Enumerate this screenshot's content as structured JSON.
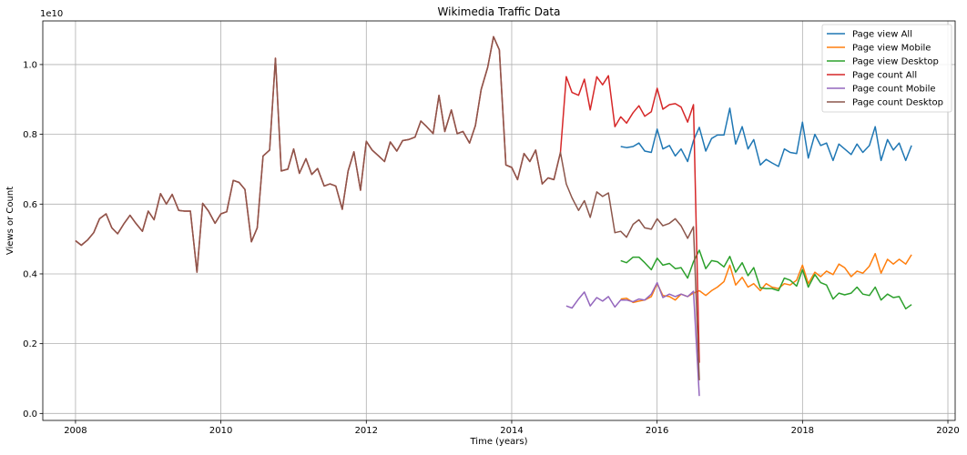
{
  "chart_data": {
    "type": "line",
    "title": "Wikimedia Traffic Data",
    "xlabel": "Time (years)",
    "ylabel": "Views or Count",
    "y_offset_label": "1e10",
    "y_multiplier": 10000000000.0,
    "xlim": [
      2007.55,
      2020.1
    ],
    "ylim": [
      -200000000.0,
      11250000000.0
    ],
    "x_ticks": [
      2008,
      2010,
      2012,
      2014,
      2016,
      2018,
      2020
    ],
    "x_tick_labels": [
      "2008",
      "2010",
      "2012",
      "2014",
      "2016",
      "2018",
      "2020"
    ],
    "y_ticks": [
      0,
      2000000000.0,
      4000000000.0,
      6000000000.0,
      8000000000.0,
      10000000000.0
    ],
    "y_tick_labels": [
      "0.0",
      "0.2",
      "0.4",
      "0.6",
      "0.8",
      "1.0"
    ],
    "grid": true,
    "legend": "top-right",
    "series": [
      {
        "name": "Page view All",
        "color": "#1f77b4",
        "x": [
          2015.5,
          2015.58,
          2015.67,
          2015.75,
          2015.83,
          2015.92,
          2016.0,
          2016.08,
          2016.17,
          2016.25,
          2016.33,
          2016.42,
          2016.5,
          2016.58,
          2016.67,
          2016.75,
          2016.83,
          2016.92,
          2017.0,
          2017.08,
          2017.17,
          2017.25,
          2017.33,
          2017.42,
          2017.5,
          2017.58,
          2017.67,
          2017.75,
          2017.83,
          2017.92,
          2018.0,
          2018.08,
          2018.17,
          2018.25,
          2018.33,
          2018.42,
          2018.5,
          2018.58,
          2018.67,
          2018.75,
          2018.83,
          2018.92,
          2019.0,
          2019.08,
          2019.17,
          2019.25,
          2019.33,
          2019.42,
          2019.5
        ],
        "y": [
          7650000000.0,
          7620000000.0,
          7650000000.0,
          7750000000.0,
          7520000000.0,
          7480000000.0,
          8150000000.0,
          7580000000.0,
          7680000000.0,
          7380000000.0,
          7580000000.0,
          7220000000.0,
          7820000000.0,
          8200000000.0,
          7520000000.0,
          7880000000.0,
          7980000000.0,
          7980000000.0,
          8750000000.0,
          7720000000.0,
          8220000000.0,
          7580000000.0,
          7850000000.0,
          7120000000.0,
          7280000000.0,
          7180000000.0,
          7080000000.0,
          7580000000.0,
          7480000000.0,
          7450000000.0,
          8350000000.0,
          7320000000.0,
          8000000000.0,
          7680000000.0,
          7750000000.0,
          7250000000.0,
          7720000000.0,
          7580000000.0,
          7420000000.0,
          7720000000.0,
          7480000000.0,
          7680000000.0,
          8220000000.0,
          7250000000.0,
          7850000000.0,
          7550000000.0,
          7750000000.0,
          7250000000.0,
          7680000000.0
        ]
      },
      {
        "name": "Page view Mobile",
        "color": "#ff7f0e",
        "x": [
          2015.5,
          2015.58,
          2015.67,
          2015.75,
          2015.83,
          2015.92,
          2016.0,
          2016.08,
          2016.17,
          2016.25,
          2016.33,
          2016.42,
          2016.5,
          2016.58,
          2016.67,
          2016.75,
          2016.83,
          2016.92,
          2017.0,
          2017.08,
          2017.17,
          2017.25,
          2017.33,
          2017.42,
          2017.5,
          2017.58,
          2017.67,
          2017.75,
          2017.83,
          2017.92,
          2018.0,
          2018.08,
          2018.17,
          2018.25,
          2018.33,
          2018.42,
          2018.5,
          2018.58,
          2018.67,
          2018.75,
          2018.83,
          2018.92,
          2019.0,
          2019.08,
          2019.17,
          2019.25,
          2019.33,
          2019.42,
          2019.5
        ],
        "y": [
          3280000000.0,
          3300000000.0,
          3180000000.0,
          3220000000.0,
          3250000000.0,
          3350000000.0,
          3720000000.0,
          3380000000.0,
          3350000000.0,
          3250000000.0,
          3420000000.0,
          3350000000.0,
          3450000000.0,
          3520000000.0,
          3380000000.0,
          3520000000.0,
          3620000000.0,
          3780000000.0,
          4250000000.0,
          3680000000.0,
          3900000000.0,
          3620000000.0,
          3720000000.0,
          3520000000.0,
          3720000000.0,
          3620000000.0,
          3580000000.0,
          3720000000.0,
          3680000000.0,
          3820000000.0,
          4250000000.0,
          3720000000.0,
          4050000000.0,
          3920000000.0,
          4080000000.0,
          3980000000.0,
          4280000000.0,
          4180000000.0,
          3920000000.0,
          4080000000.0,
          4020000000.0,
          4220000000.0,
          4580000000.0,
          4020000000.0,
          4420000000.0,
          4280000000.0,
          4420000000.0,
          4280000000.0,
          4550000000.0
        ]
      },
      {
        "name": "Page view Desktop",
        "color": "#2ca02c",
        "x": [
          2015.5,
          2015.58,
          2015.67,
          2015.75,
          2015.83,
          2015.92,
          2016.0,
          2016.08,
          2016.17,
          2016.25,
          2016.33,
          2016.42,
          2016.5,
          2016.58,
          2016.67,
          2016.75,
          2016.83,
          2016.92,
          2017.0,
          2017.08,
          2017.17,
          2017.25,
          2017.33,
          2017.42,
          2017.5,
          2017.58,
          2017.67,
          2017.75,
          2017.83,
          2017.92,
          2018.0,
          2018.08,
          2018.17,
          2018.25,
          2018.33,
          2018.42,
          2018.5,
          2018.58,
          2018.67,
          2018.75,
          2018.83,
          2018.92,
          2019.0,
          2019.08,
          2019.17,
          2019.25,
          2019.33,
          2019.42,
          2019.5
        ],
        "y": [
          4380000000.0,
          4320000000.0,
          4480000000.0,
          4480000000.0,
          4320000000.0,
          4120000000.0,
          4450000000.0,
          4250000000.0,
          4300000000.0,
          4150000000.0,
          4180000000.0,
          3880000000.0,
          4350000000.0,
          4680000000.0,
          4150000000.0,
          4380000000.0,
          4350000000.0,
          4200000000.0,
          4500000000.0,
          4050000000.0,
          4320000000.0,
          3950000000.0,
          4180000000.0,
          3600000000.0,
          3580000000.0,
          3580000000.0,
          3520000000.0,
          3880000000.0,
          3820000000.0,
          3650000000.0,
          4120000000.0,
          3620000000.0,
          3980000000.0,
          3750000000.0,
          3680000000.0,
          3280000000.0,
          3450000000.0,
          3400000000.0,
          3450000000.0,
          3620000000.0,
          3420000000.0,
          3380000000.0,
          3620000000.0,
          3250000000.0,
          3420000000.0,
          3320000000.0,
          3350000000.0,
          3000000000.0,
          3120000000.0
        ]
      },
      {
        "name": "Page count All",
        "color": "#d62728",
        "x": [
          2008.0,
          2008.08,
          2008.17,
          2008.25,
          2008.33,
          2008.42,
          2008.5,
          2008.58,
          2008.67,
          2008.75,
          2008.83,
          2008.92,
          2009.0,
          2009.08,
          2009.17,
          2009.25,
          2009.33,
          2009.42,
          2009.5,
          2009.58,
          2009.67,
          2009.75,
          2009.83,
          2009.92,
          2010.0,
          2010.08,
          2010.17,
          2010.25,
          2010.33,
          2010.42,
          2010.5,
          2010.58,
          2010.67,
          2010.75,
          2010.83,
          2010.92,
          2011.0,
          2011.08,
          2011.17,
          2011.25,
          2011.33,
          2011.42,
          2011.5,
          2011.58,
          2011.67,
          2011.75,
          2011.83,
          2011.92,
          2012.0,
          2012.08,
          2012.17,
          2012.25,
          2012.33,
          2012.42,
          2012.5,
          2012.58,
          2012.67,
          2012.75,
          2012.83,
          2012.92,
          2013.0,
          2013.08,
          2013.17,
          2013.25,
          2013.33,
          2013.42,
          2013.5,
          2013.58,
          2013.67,
          2013.75,
          2013.83,
          2013.92,
          2014.0,
          2014.08,
          2014.17,
          2014.25,
          2014.33,
          2014.42,
          2014.5,
          2014.58,
          2014.67,
          2014.75,
          2014.83,
          2014.92,
          2015.0,
          2015.08,
          2015.17,
          2015.25,
          2015.33,
          2015.42,
          2015.5,
          2015.58,
          2015.67,
          2015.75,
          2015.83,
          2015.92,
          2016.0,
          2016.08,
          2016.17,
          2016.25,
          2016.33,
          2016.42,
          2016.5,
          2016.58
        ],
        "y": [
          4950000000.0,
          4820000000.0,
          4980000000.0,
          5180000000.0,
          5580000000.0,
          5720000000.0,
          5320000000.0,
          5150000000.0,
          5450000000.0,
          5680000000.0,
          5450000000.0,
          5220000000.0,
          5800000000.0,
          5550000000.0,
          6300000000.0,
          6000000000.0,
          6280000000.0,
          5820000000.0,
          5800000000.0,
          5800000000.0,
          4050000000.0,
          6020000000.0,
          5800000000.0,
          5450000000.0,
          5720000000.0,
          5780000000.0,
          6680000000.0,
          6620000000.0,
          6420000000.0,
          4920000000.0,
          5320000000.0,
          7380000000.0,
          7550000000.0,
          10180000000.0,
          6950000000.0,
          7000000000.0,
          7580000000.0,
          6880000000.0,
          7300000000.0,
          6850000000.0,
          7020000000.0,
          6520000000.0,
          6580000000.0,
          6520000000.0,
          5850000000.0,
          6950000000.0,
          7500000000.0,
          6400000000.0,
          7800000000.0,
          7550000000.0,
          7380000000.0,
          7220000000.0,
          7780000000.0,
          7520000000.0,
          7820000000.0,
          7850000000.0,
          7920000000.0,
          8380000000.0,
          8220000000.0,
          8020000000.0,
          9120000000.0,
          8080000000.0,
          8700000000.0,
          8020000000.0,
          8080000000.0,
          7750000000.0,
          8250000000.0,
          9280000000.0,
          9920000000.0,
          10800000000.0,
          10420000000.0,
          7120000000.0,
          7050000000.0,
          6700000000.0,
          7450000000.0,
          7220000000.0,
          7550000000.0,
          6580000000.0,
          6750000000.0,
          6700000000.0,
          7480000000.0,
          9650000000.0,
          9200000000.0,
          9120000000.0,
          9580000000.0,
          8700000000.0,
          9650000000.0,
          9420000000.0,
          9680000000.0,
          8220000000.0,
          8500000000.0,
          8320000000.0,
          8620000000.0,
          8820000000.0,
          8520000000.0,
          8650000000.0,
          9320000000.0,
          8720000000.0,
          8850000000.0,
          8880000000.0,
          8780000000.0,
          8350000000.0,
          8850000000.0,
          1450000000.0
        ]
      },
      {
        "name": "Page count Mobile",
        "color": "#9467bd",
        "x": [
          2014.75,
          2014.83,
          2014.92,
          2015.0,
          2015.08,
          2015.17,
          2015.25,
          2015.33,
          2015.42,
          2015.5,
          2015.58,
          2015.67,
          2015.75,
          2015.83,
          2015.92,
          2016.0,
          2016.08,
          2016.17,
          2016.25,
          2016.33,
          2016.42,
          2016.5,
          2016.58
        ],
        "y": [
          3080000000.0,
          3020000000.0,
          3280000000.0,
          3480000000.0,
          3080000000.0,
          3320000000.0,
          3220000000.0,
          3350000000.0,
          3050000000.0,
          3250000000.0,
          3250000000.0,
          3200000000.0,
          3280000000.0,
          3250000000.0,
          3420000000.0,
          3750000000.0,
          3320000000.0,
          3420000000.0,
          3350000000.0,
          3420000000.0,
          3350000000.0,
          3500000000.0,
          500000000.0
        ]
      },
      {
        "name": "Page count Desktop",
        "color": "#8c564b",
        "x": [
          2008.0,
          2008.08,
          2008.17,
          2008.25,
          2008.33,
          2008.42,
          2008.5,
          2008.58,
          2008.67,
          2008.75,
          2008.83,
          2008.92,
          2009.0,
          2009.08,
          2009.17,
          2009.25,
          2009.33,
          2009.42,
          2009.5,
          2009.58,
          2009.67,
          2009.75,
          2009.83,
          2009.92,
          2010.0,
          2010.08,
          2010.17,
          2010.25,
          2010.33,
          2010.42,
          2010.5,
          2010.58,
          2010.67,
          2010.75,
          2010.83,
          2010.92,
          2011.0,
          2011.08,
          2011.17,
          2011.25,
          2011.33,
          2011.42,
          2011.5,
          2011.58,
          2011.67,
          2011.75,
          2011.83,
          2011.92,
          2012.0,
          2012.08,
          2012.17,
          2012.25,
          2012.33,
          2012.42,
          2012.5,
          2012.58,
          2012.67,
          2012.75,
          2012.83,
          2012.92,
          2013.0,
          2013.08,
          2013.17,
          2013.25,
          2013.33,
          2013.42,
          2013.5,
          2013.58,
          2013.67,
          2013.75,
          2013.83,
          2013.92,
          2014.0,
          2014.08,
          2014.17,
          2014.25,
          2014.33,
          2014.42,
          2014.5,
          2014.58,
          2014.67,
          2014.75,
          2014.83,
          2014.92,
          2015.0,
          2015.08,
          2015.17,
          2015.25,
          2015.33,
          2015.42,
          2015.5,
          2015.58,
          2015.67,
          2015.75,
          2015.83,
          2015.92,
          2016.0,
          2016.08,
          2016.17,
          2016.25,
          2016.33,
          2016.42,
          2016.5,
          2016.58
        ],
        "y": [
          4950000000.0,
          4820000000.0,
          4980000000.0,
          5180000000.0,
          5580000000.0,
          5720000000.0,
          5320000000.0,
          5150000000.0,
          5450000000.0,
          5680000000.0,
          5450000000.0,
          5220000000.0,
          5800000000.0,
          5550000000.0,
          6300000000.0,
          6000000000.0,
          6280000000.0,
          5820000000.0,
          5800000000.0,
          5800000000.0,
          4050000000.0,
          6020000000.0,
          5800000000.0,
          5450000000.0,
          5720000000.0,
          5780000000.0,
          6680000000.0,
          6620000000.0,
          6420000000.0,
          4920000000.0,
          5320000000.0,
          7380000000.0,
          7550000000.0,
          10180000000.0,
          6950000000.0,
          7000000000.0,
          7580000000.0,
          6880000000.0,
          7300000000.0,
          6850000000.0,
          7020000000.0,
          6520000000.0,
          6580000000.0,
          6520000000.0,
          5850000000.0,
          6950000000.0,
          7500000000.0,
          6400000000.0,
          7800000000.0,
          7550000000.0,
          7380000000.0,
          7220000000.0,
          7780000000.0,
          7520000000.0,
          7820000000.0,
          7850000000.0,
          7920000000.0,
          8380000000.0,
          8220000000.0,
          8020000000.0,
          9120000000.0,
          8080000000.0,
          8700000000.0,
          8020000000.0,
          8080000000.0,
          7750000000.0,
          8250000000.0,
          9280000000.0,
          9920000000.0,
          10800000000.0,
          10420000000.0,
          7120000000.0,
          7050000000.0,
          6700000000.0,
          7450000000.0,
          7220000000.0,
          7550000000.0,
          6580000000.0,
          6750000000.0,
          6700000000.0,
          7480000000.0,
          6580000000.0,
          6180000000.0,
          5820000000.0,
          6100000000.0,
          5620000000.0,
          6350000000.0,
          6220000000.0,
          6320000000.0,
          5180000000.0,
          5220000000.0,
          5050000000.0,
          5420000000.0,
          5550000000.0,
          5320000000.0,
          5280000000.0,
          5580000000.0,
          5380000000.0,
          5450000000.0,
          5580000000.0,
          5380000000.0,
          5020000000.0,
          5350000000.0,
          950000000.0
        ]
      }
    ]
  }
}
